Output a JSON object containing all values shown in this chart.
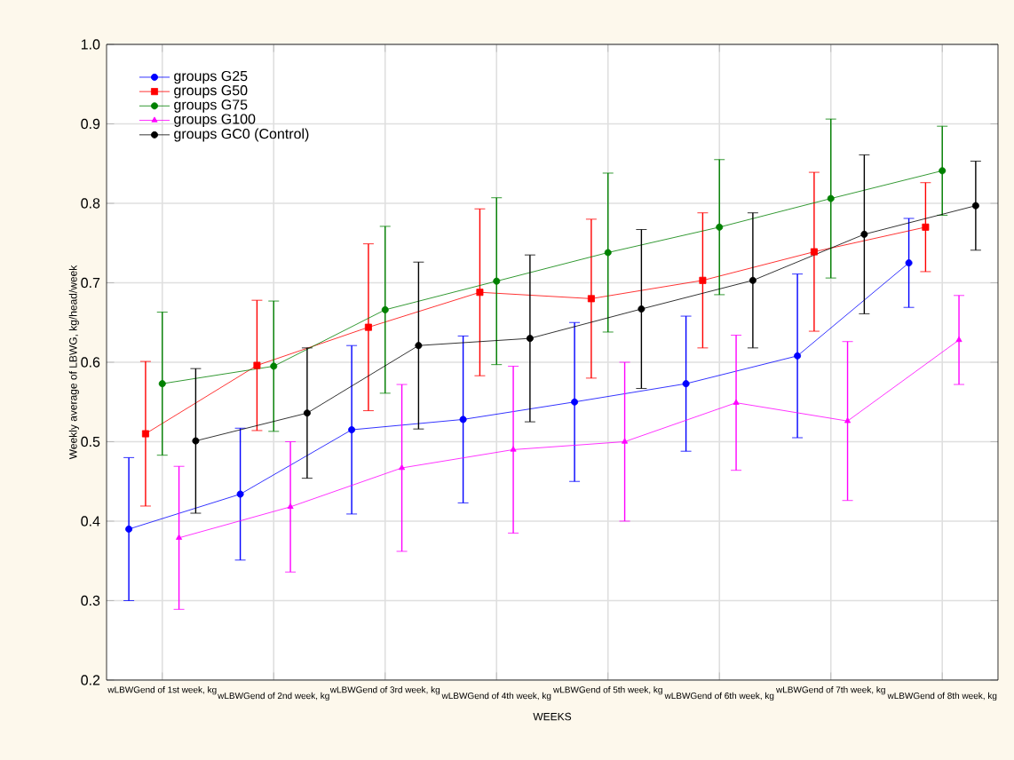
{
  "chart_data": {
    "type": "line",
    "xlabel": "WEEKS",
    "ylabel": "Weekly average of LBWG, kg/head/week",
    "categories": [
      "wLBWGend of 1st week, kg",
      "wLBWGend of 2nd week, kg",
      "wLBWGend of 3rd week, kg",
      "wLBWGend of 4th week, kg",
      "wLBWGend of 5th week, kg",
      "wLBWGend of 6th week, kg",
      "wLBWGend of 7th week, kg",
      "wLBWGend of 8th week, kg"
    ],
    "ylim": [
      0.2,
      1.0
    ],
    "yticks": [
      {
        "value": 0.2,
        "label": "0.2"
      },
      {
        "value": 0.3,
        "label": "0.3"
      },
      {
        "value": 0.4,
        "label": "0.4"
      },
      {
        "value": 0.5,
        "label": "0.5"
      },
      {
        "value": 0.6,
        "label": "0.6"
      },
      {
        "value": 0.7,
        "label": "0.7"
      },
      {
        "value": 0.8,
        "label": "0.8"
      },
      {
        "value": 0.9,
        "label": "0.9"
      },
      {
        "value": 1.0,
        "label": "1.0"
      }
    ],
    "grid": true,
    "legend": "top left",
    "series": [
      {
        "name": "groups G25",
        "color": "#0000ff",
        "marker": "circle",
        "values": [
          0.39,
          0.434,
          0.515,
          0.528,
          0.55,
          0.573,
          0.608,
          0.725
        ],
        "errors": [
          0.09,
          0.083,
          0.106,
          0.105,
          0.1,
          0.085,
          0.103,
          0.056
        ]
      },
      {
        "name": "groups G50",
        "color": "#ff0000",
        "marker": "square",
        "values": [
          0.51,
          0.596,
          0.644,
          0.688,
          0.68,
          0.703,
          0.739,
          0.77
        ],
        "errors": [
          0.091,
          0.082,
          0.105,
          0.105,
          0.1,
          0.085,
          0.1,
          0.056
        ]
      },
      {
        "name": "groups G75",
        "color": "#008000",
        "marker": "circle",
        "values": [
          0.573,
          0.595,
          0.666,
          0.702,
          0.738,
          0.77,
          0.806,
          0.841
        ],
        "errors": [
          0.09,
          0.082,
          0.105,
          0.105,
          0.1,
          0.085,
          0.1,
          0.056
        ]
      },
      {
        "name": "groups G100",
        "color": "#ff00ff",
        "marker": "triangle",
        "values": [
          0.379,
          0.418,
          0.467,
          0.49,
          0.5,
          0.549,
          0.526,
          0.628
        ],
        "errors": [
          0.09,
          0.082,
          0.105,
          0.105,
          0.1,
          0.085,
          0.1,
          0.056
        ]
      },
      {
        "name": "groups GC0 (Control)",
        "color": "#000000",
        "marker": "circle",
        "values": [
          0.501,
          0.536,
          0.621,
          0.63,
          0.667,
          0.703,
          0.761,
          0.797
        ],
        "errors": [
          0.091,
          0.082,
          0.105,
          0.105,
          0.1,
          0.085,
          0.1,
          0.056
        ]
      }
    ]
  }
}
